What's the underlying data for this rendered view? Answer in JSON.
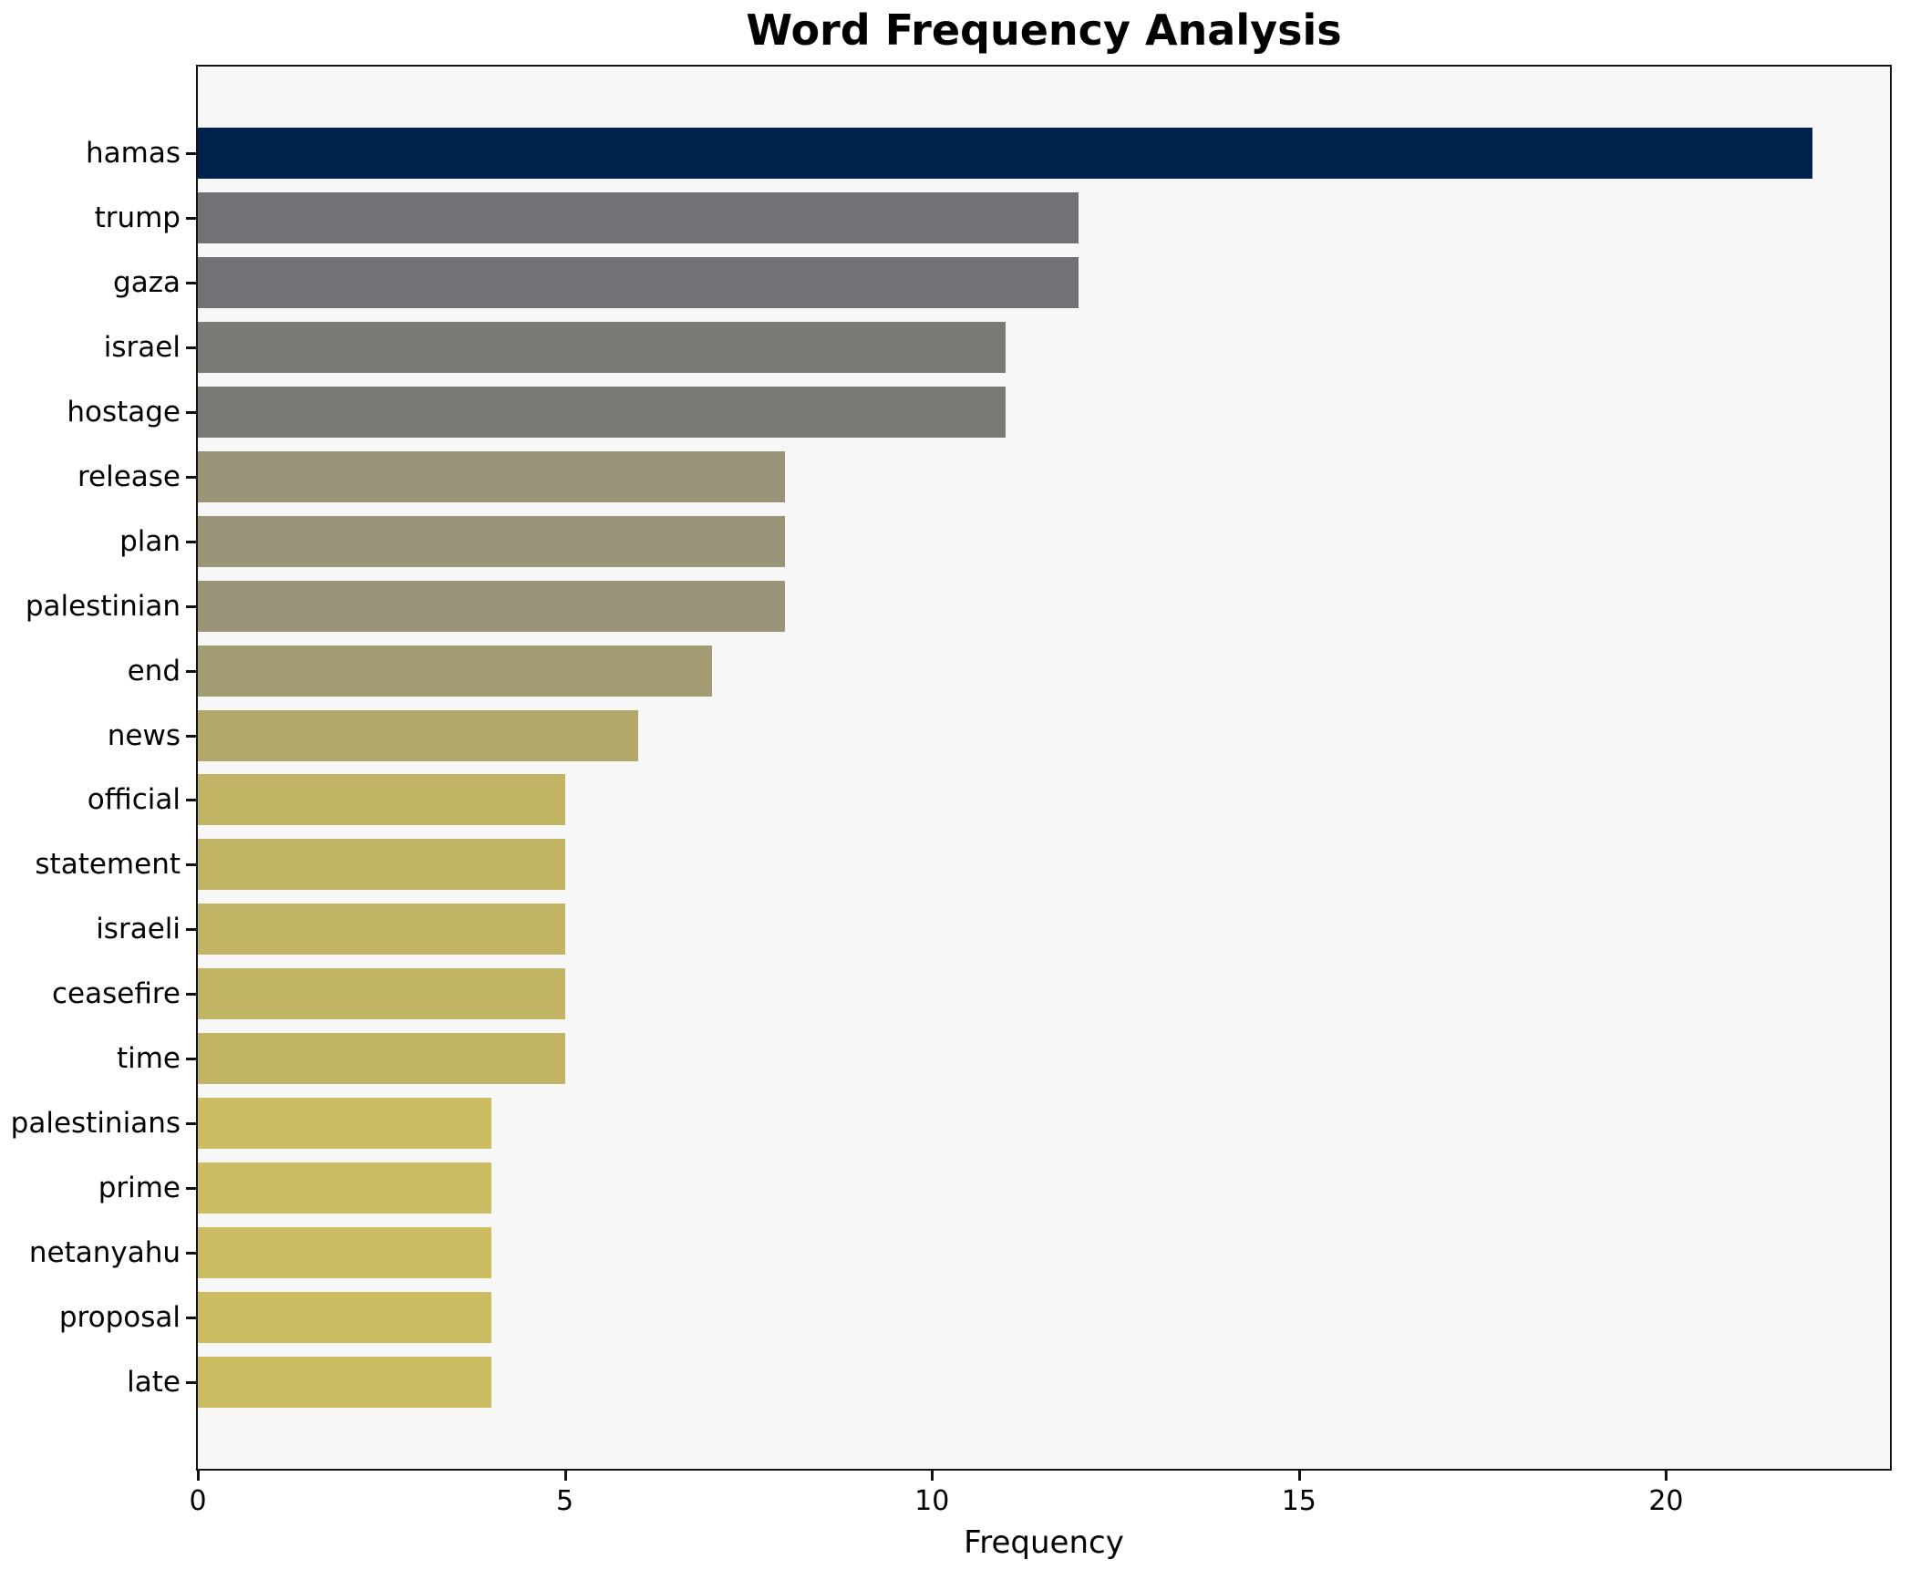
{
  "figure": {
    "background": "#ffffff",
    "plot_background": "#f7f7f7",
    "spine_color": "#111111",
    "text_color": "#000000"
  },
  "chart_data": {
    "type": "bar",
    "orientation": "horizontal",
    "title": "Word Frequency Analysis",
    "xlabel": "Frequency",
    "ylabel": "",
    "grid": false,
    "legend": null,
    "xlim": [
      0,
      23.05
    ],
    "xticks": [
      0,
      5,
      10,
      15,
      20
    ],
    "categories": [
      "hamas",
      "trump",
      "gaza",
      "israel",
      "hostage",
      "release",
      "plan",
      "palestinian",
      "end",
      "news",
      "official",
      "statement",
      "israeli",
      "ceasefire",
      "time",
      "palestinians",
      "prime",
      "netanyahu",
      "proposal",
      "late"
    ],
    "values": [
      22,
      12,
      12,
      11,
      11,
      8,
      8,
      8,
      7,
      6,
      5,
      5,
      5,
      5,
      5,
      4,
      4,
      4,
      4,
      4
    ],
    "bar_colors": [
      "#00234e",
      "#717275",
      "#717275",
      "#7b7a74",
      "#7b7a74",
      "#9a9478",
      "#9a9478",
      "#9a9478",
      "#a39b71",
      "#b2a86a",
      "#c1b465",
      "#c1b465",
      "#c1b465",
      "#c1b465",
      "#c1b465",
      "#ccbc62",
      "#ccbc62",
      "#ccbc62",
      "#ccbc62",
      "#ccbc62"
    ]
  }
}
